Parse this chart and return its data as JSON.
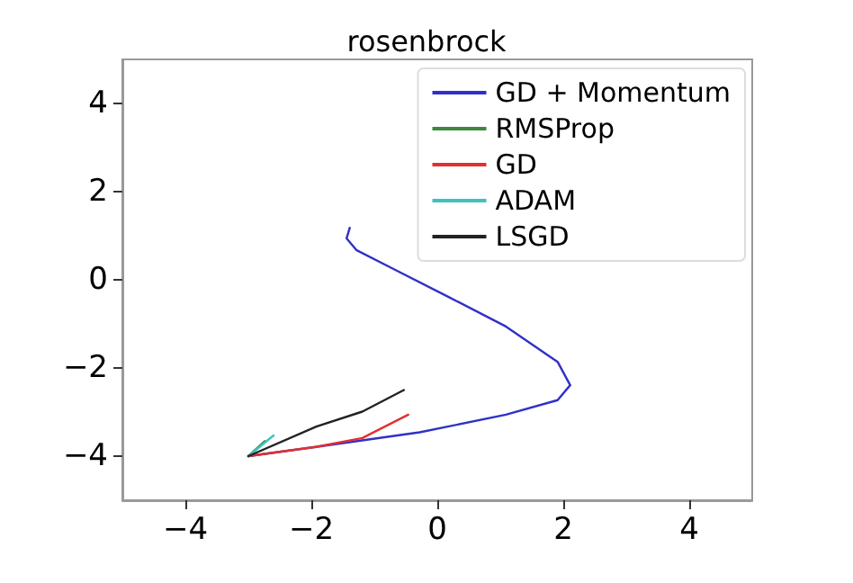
{
  "chart_data": {
    "type": "line",
    "title": "rosenbrock",
    "xlim": [
      -5,
      5
    ],
    "ylim": [
      -5,
      5
    ],
    "xticks": [
      -4,
      -2,
      0,
      2,
      4
    ],
    "yticks": [
      -4,
      -2,
      0,
      2,
      4
    ],
    "grid": false,
    "legend": "top right",
    "marker": "none",
    "line_style": "solid",
    "series": [
      {
        "name": "GD + Momentum",
        "color": "#3030c8",
        "x": [
          -3,
          -1.93,
          -0.28,
          1.09,
          1.91,
          2.11,
          1.91,
          1.09,
          0.18,
          -0.73,
          -1.28,
          -1.44,
          -1.39
        ],
        "values": [
          -4,
          -3.79,
          -3.46,
          -3.06,
          -2.73,
          -2.39,
          -1.86,
          -1.06,
          -0.39,
          0.27,
          0.67,
          0.94,
          1.18
        ]
      },
      {
        "name": "RMSProp",
        "color": "#3a8a3a",
        "x": [
          -3,
          -2.74
        ],
        "values": [
          -4,
          -3.66
        ]
      },
      {
        "name": "GD",
        "color": "#e03030",
        "x": [
          -3,
          -1.93,
          -1.19,
          -0.46
        ],
        "values": [
          -4,
          -3.79,
          -3.59,
          -3.06
        ]
      },
      {
        "name": "ADAM",
        "color": "#40c0c0",
        "x": [
          -3,
          -2.6
        ],
        "values": [
          -4,
          -3.53
        ]
      },
      {
        "name": "LSGD",
        "color": "#222222",
        "x": [
          -3,
          -1.92,
          -1.19,
          -0.53
        ],
        "values": [
          -4,
          -3.33,
          -2.99,
          -2.5
        ]
      }
    ]
  }
}
